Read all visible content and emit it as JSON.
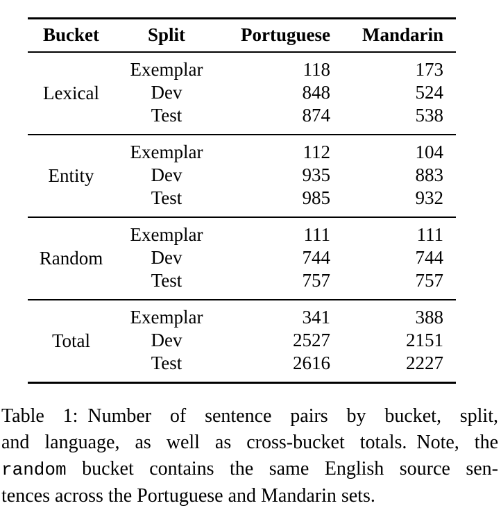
{
  "page": {
    "background": "#ffffff",
    "text_color": "#000000",
    "rule_color": "#000000"
  },
  "table": {
    "columns": [
      "Bucket",
      "Split",
      "Portuguese",
      "Mandarin"
    ],
    "groups": [
      {
        "bucket": "Lexical",
        "rows": [
          {
            "split": "Exemplar",
            "portuguese": "118",
            "mandarin": "173"
          },
          {
            "split": "Dev",
            "portuguese": "848",
            "mandarin": "524"
          },
          {
            "split": "Test",
            "portuguese": "874",
            "mandarin": "538"
          }
        ]
      },
      {
        "bucket": "Entity",
        "rows": [
          {
            "split": "Exemplar",
            "portuguese": "112",
            "mandarin": "104"
          },
          {
            "split": "Dev",
            "portuguese": "935",
            "mandarin": "883"
          },
          {
            "split": "Test",
            "portuguese": "985",
            "mandarin": "932"
          }
        ]
      },
      {
        "bucket": "Random",
        "rows": [
          {
            "split": "Exemplar",
            "portuguese": "111",
            "mandarin": "111"
          },
          {
            "split": "Dev",
            "portuguese": "744",
            "mandarin": "744"
          },
          {
            "split": "Test",
            "portuguese": "757",
            "mandarin": "757"
          }
        ]
      },
      {
        "bucket": "Total",
        "rows": [
          {
            "split": "Exemplar",
            "portuguese": "341",
            "mandarin": "388"
          },
          {
            "split": "Dev",
            "portuguese": "2527",
            "mandarin": "2151"
          },
          {
            "split": "Test",
            "portuguese": "2616",
            "mandarin": "2227"
          }
        ]
      }
    ]
  },
  "caption": {
    "label": "Table 1:",
    "lines": [
      [
        {
          "t": "Table 1: Number of sentence pairs by bucket, split,",
          "mono": false
        }
      ],
      [
        {
          "t": "and language, as well as cross-bucket totals. Note, the",
          "mono": false
        }
      ],
      [
        {
          "t": "random",
          "mono": true
        },
        {
          "t": " bucket contains the same English source sen-",
          "mono": false
        }
      ],
      [
        {
          "t": "tences across the Portuguese and Mandarin sets.",
          "mono": false
        }
      ]
    ]
  }
}
